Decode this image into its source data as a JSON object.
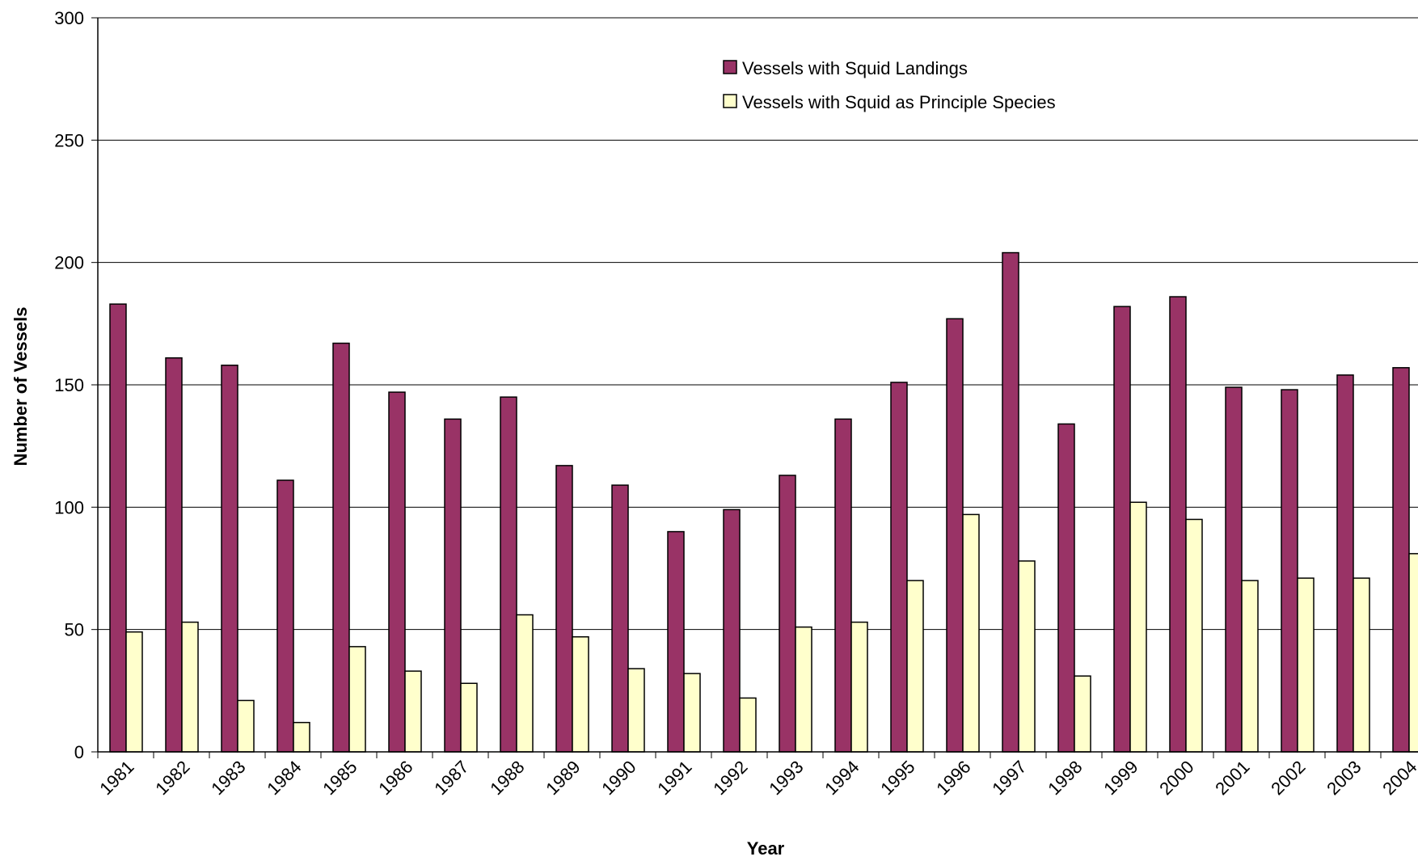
{
  "chart_data": {
    "type": "bar",
    "title": "",
    "xlabel": "Year",
    "ylabel": "Number of Vessels",
    "ylim": [
      0,
      300
    ],
    "yticks": [
      0,
      50,
      100,
      150,
      200,
      250,
      300
    ],
    "grid": true,
    "legend_position": "top-center",
    "categories": [
      "1981",
      "1982",
      "1983",
      "1984",
      "1985",
      "1986",
      "1987",
      "1988",
      "1989",
      "1990",
      "1991",
      "1992",
      "1993",
      "1994",
      "1995",
      "1996",
      "1997",
      "1998",
      "1999",
      "2000",
      "2001",
      "2002",
      "2003",
      "2004"
    ],
    "series": [
      {
        "name": "Vessels with Squid Landings",
        "color": "#993366",
        "values": [
          183,
          161,
          158,
          111,
          167,
          147,
          136,
          145,
          117,
          109,
          90,
          99,
          113,
          136,
          151,
          177,
          204,
          134,
          182,
          186,
          149,
          148,
          154,
          157
        ]
      },
      {
        "name": "Vessels with Squid as Principle Species",
        "color": "#FFFFCC",
        "values": [
          49,
          53,
          21,
          12,
          43,
          33,
          28,
          56,
          47,
          34,
          32,
          22,
          51,
          53,
          70,
          97,
          78,
          31,
          102,
          95,
          70,
          71,
          71,
          81
        ]
      }
    ]
  }
}
